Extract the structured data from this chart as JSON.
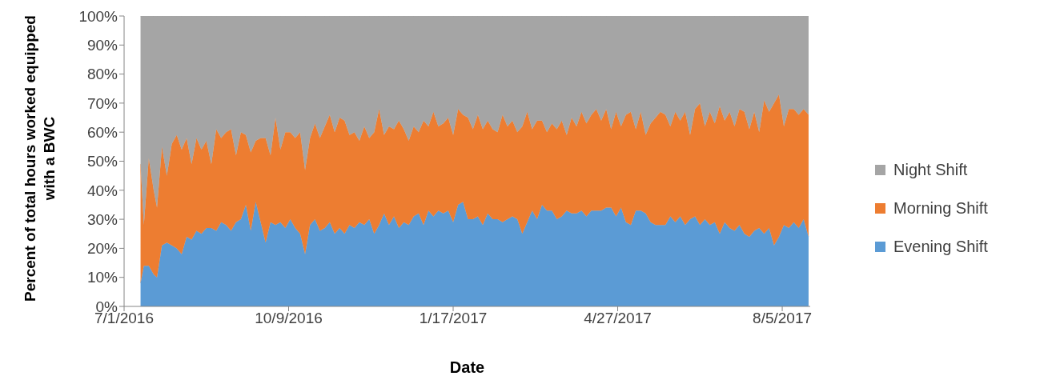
{
  "chart_data": {
    "type": "area",
    "stacked": true,
    "xlabel": "Date",
    "ylabel": "Percent of total hours worked equipped with a BWC",
    "legend": "right",
    "xlim": [
      "2016-07-01",
      "2017-08-22"
    ],
    "xticks": [
      {
        "value": "2016-07-01",
        "label": "7/1/2016"
      },
      {
        "value": "2016-10-09",
        "label": "10/9/2016"
      },
      {
        "value": "2017-01-17",
        "label": "1/17/2017"
      },
      {
        "value": "2017-04-27",
        "label": "4/27/2017"
      },
      {
        "value": "2017-08-05",
        "label": "8/5/2017"
      }
    ],
    "ylim": [
      0,
      100
    ],
    "yticks": [
      {
        "value": 0,
        "label": "0%"
      },
      {
        "value": 10,
        "label": "10%"
      },
      {
        "value": 20,
        "label": "20%"
      },
      {
        "value": 30,
        "label": "30%"
      },
      {
        "value": 40,
        "label": "40%"
      },
      {
        "value": 50,
        "label": "50%"
      },
      {
        "value": 60,
        "label": "60%"
      },
      {
        "value": 70,
        "label": "70%"
      },
      {
        "value": 80,
        "label": "80%"
      },
      {
        "value": 90,
        "label": "90%"
      },
      {
        "value": 100,
        "label": "100%"
      }
    ],
    "x": [
      "2016-07-11",
      "2016-07-13",
      "2016-07-16",
      "2016-07-19",
      "2016-07-21",
      "2016-07-24",
      "2016-07-27",
      "2016-07-30",
      "2016-08-02",
      "2016-08-05",
      "2016-08-08",
      "2016-08-11",
      "2016-08-14",
      "2016-08-17",
      "2016-08-20",
      "2016-08-23",
      "2016-08-26",
      "2016-08-29",
      "2016-09-01",
      "2016-09-04",
      "2016-09-07",
      "2016-09-10",
      "2016-09-13",
      "2016-09-16",
      "2016-09-19",
      "2016-09-22",
      "2016-09-25",
      "2016-09-28",
      "2016-10-01",
      "2016-10-04",
      "2016-10-07",
      "2016-10-10",
      "2016-10-13",
      "2016-10-16",
      "2016-10-19",
      "2016-10-22",
      "2016-10-25",
      "2016-10-28",
      "2016-10-31",
      "2016-11-03",
      "2016-11-06",
      "2016-11-09",
      "2016-11-12",
      "2016-11-15",
      "2016-11-18",
      "2016-11-21",
      "2016-11-24",
      "2016-11-27",
      "2016-11-30",
      "2016-12-03",
      "2016-12-06",
      "2016-12-09",
      "2016-12-12",
      "2016-12-15",
      "2016-12-18",
      "2016-12-21",
      "2016-12-24",
      "2016-12-27",
      "2016-12-30",
      "2017-01-02",
      "2017-01-05",
      "2017-01-08",
      "2017-01-11",
      "2017-01-14",
      "2017-01-17",
      "2017-01-20",
      "2017-01-23",
      "2017-01-26",
      "2017-01-29",
      "2017-02-01",
      "2017-02-04",
      "2017-02-07",
      "2017-02-10",
      "2017-02-13",
      "2017-02-16",
      "2017-02-19",
      "2017-02-22",
      "2017-02-25",
      "2017-02-28",
      "2017-03-03",
      "2017-03-06",
      "2017-03-09",
      "2017-03-12",
      "2017-03-15",
      "2017-03-18",
      "2017-03-21",
      "2017-03-24",
      "2017-03-27",
      "2017-03-30",
      "2017-04-02",
      "2017-04-05",
      "2017-04-08",
      "2017-04-11",
      "2017-04-14",
      "2017-04-17",
      "2017-04-20",
      "2017-04-23",
      "2017-04-26",
      "2017-04-29",
      "2017-05-02",
      "2017-05-05",
      "2017-05-08",
      "2017-05-11",
      "2017-05-14",
      "2017-05-17",
      "2017-05-20",
      "2017-05-23",
      "2017-05-26",
      "2017-05-29",
      "2017-06-01",
      "2017-06-04",
      "2017-06-07",
      "2017-06-10",
      "2017-06-13",
      "2017-06-16",
      "2017-06-19",
      "2017-06-22",
      "2017-06-25",
      "2017-06-28",
      "2017-07-01",
      "2017-07-04",
      "2017-07-07",
      "2017-07-10",
      "2017-07-13",
      "2017-07-16",
      "2017-07-19",
      "2017-07-22",
      "2017-07-25",
      "2017-07-28",
      "2017-07-31",
      "2017-08-03",
      "2017-08-06",
      "2017-08-09",
      "2017-08-12",
      "2017-08-15",
      "2017-08-18",
      "2017-08-21"
    ],
    "series": [
      {
        "name": "Evening Shift",
        "color": "#5b9bd5",
        "values": [
          8,
          14,
          14,
          11,
          10,
          21,
          22,
          21,
          20,
          18,
          24,
          23,
          26,
          25,
          27,
          27,
          26,
          29,
          28,
          26,
          29,
          30,
          35,
          26,
          36,
          29,
          22,
          29,
          28,
          29,
          27,
          30,
          27,
          25,
          18,
          28,
          30,
          26,
          27,
          29,
          25,
          27,
          25,
          28,
          27,
          29,
          28,
          30,
          25,
          28,
          32,
          28,
          31,
          27,
          29,
          28,
          31,
          32,
          28,
          33,
          31,
          33,
          32,
          33,
          29,
          35,
          36,
          30,
          30,
          31,
          28,
          32,
          30,
          30,
          29,
          30,
          31,
          30,
          25,
          29,
          33,
          30,
          35,
          33,
          33,
          30,
          31,
          33,
          32,
          32,
          33,
          31,
          33,
          33,
          33,
          34,
          34,
          31,
          34,
          29,
          28,
          33,
          33,
          32,
          29,
          28,
          28,
          28,
          31,
          29,
          31,
          28,
          30,
          31,
          28,
          30,
          28,
          29,
          25,
          29,
          27,
          26,
          28,
          25,
          24,
          26,
          27,
          25,
          27,
          21,
          24,
          28,
          27,
          29,
          27,
          30,
          24
        ]
      },
      {
        "name": "Morning Shift",
        "color": "#ed7d31",
        "values": [
          41,
          14,
          37,
          29,
          24,
          34,
          23,
          35,
          39,
          36,
          34,
          26,
          32,
          29,
          30,
          22,
          35,
          29,
          32,
          35,
          23,
          30,
          24,
          27,
          21,
          29,
          36,
          23,
          37,
          25,
          33,
          30,
          31,
          35,
          29,
          30,
          33,
          32,
          35,
          37,
          35,
          38,
          39,
          31,
          33,
          28,
          34,
          28,
          35,
          40,
          27,
          34,
          30,
          37,
          32,
          29,
          31,
          28,
          36,
          29,
          36,
          29,
          31,
          32,
          30,
          33,
          30,
          35,
          31,
          35,
          33,
          32,
          31,
          30,
          37,
          32,
          33,
          30,
          37,
          38,
          28,
          34,
          29,
          27,
          30,
          31,
          33,
          26,
          33,
          30,
          34,
          32,
          33,
          35,
          31,
          34,
          27,
          36,
          28,
          37,
          39,
          28,
          34,
          27,
          34,
          37,
          39,
          38,
          31,
          38,
          33,
          39,
          29,
          37,
          42,
          32,
          39,
          34,
          44,
          35,
          40,
          36,
          40,
          42,
          37,
          41,
          33,
          46,
          40,
          49,
          49,
          34,
          41,
          39,
          39,
          38,
          42
        ]
      },
      {
        "name": "Night Shift",
        "color": "#a5a5a5",
        "values": [
          51,
          72,
          49,
          60,
          66,
          45,
          55,
          44,
          41,
          46,
          42,
          51,
          42,
          46,
          43,
          51,
          39,
          42,
          40,
          39,
          48,
          40,
          41,
          47,
          43,
          42,
          42,
          48,
          35,
          46,
          40,
          40,
          42,
          40,
          53,
          42,
          37,
          42,
          38,
          34,
          40,
          35,
          36,
          41,
          40,
          43,
          38,
          42,
          40,
          32,
          41,
          38,
          39,
          36,
          39,
          43,
          38,
          40,
          36,
          38,
          33,
          38,
          37,
          35,
          41,
          32,
          34,
          35,
          39,
          34,
          39,
          36,
          39,
          40,
          34,
          38,
          36,
          40,
          38,
          33,
          39,
          36,
          36,
          40,
          37,
          39,
          36,
          41,
          35,
          38,
          33,
          37,
          34,
          32,
          36,
          32,
          39,
          33,
          38,
          34,
          33,
          39,
          33,
          41,
          37,
          35,
          33,
          34,
          38,
          33,
          36,
          33,
          41,
          32,
          30,
          38,
          33,
          37,
          31,
          36,
          33,
          38,
          32,
          33,
          39,
          33,
          40,
          29,
          33,
          30,
          27,
          38,
          32,
          32,
          34,
          32,
          34
        ]
      }
    ]
  }
}
